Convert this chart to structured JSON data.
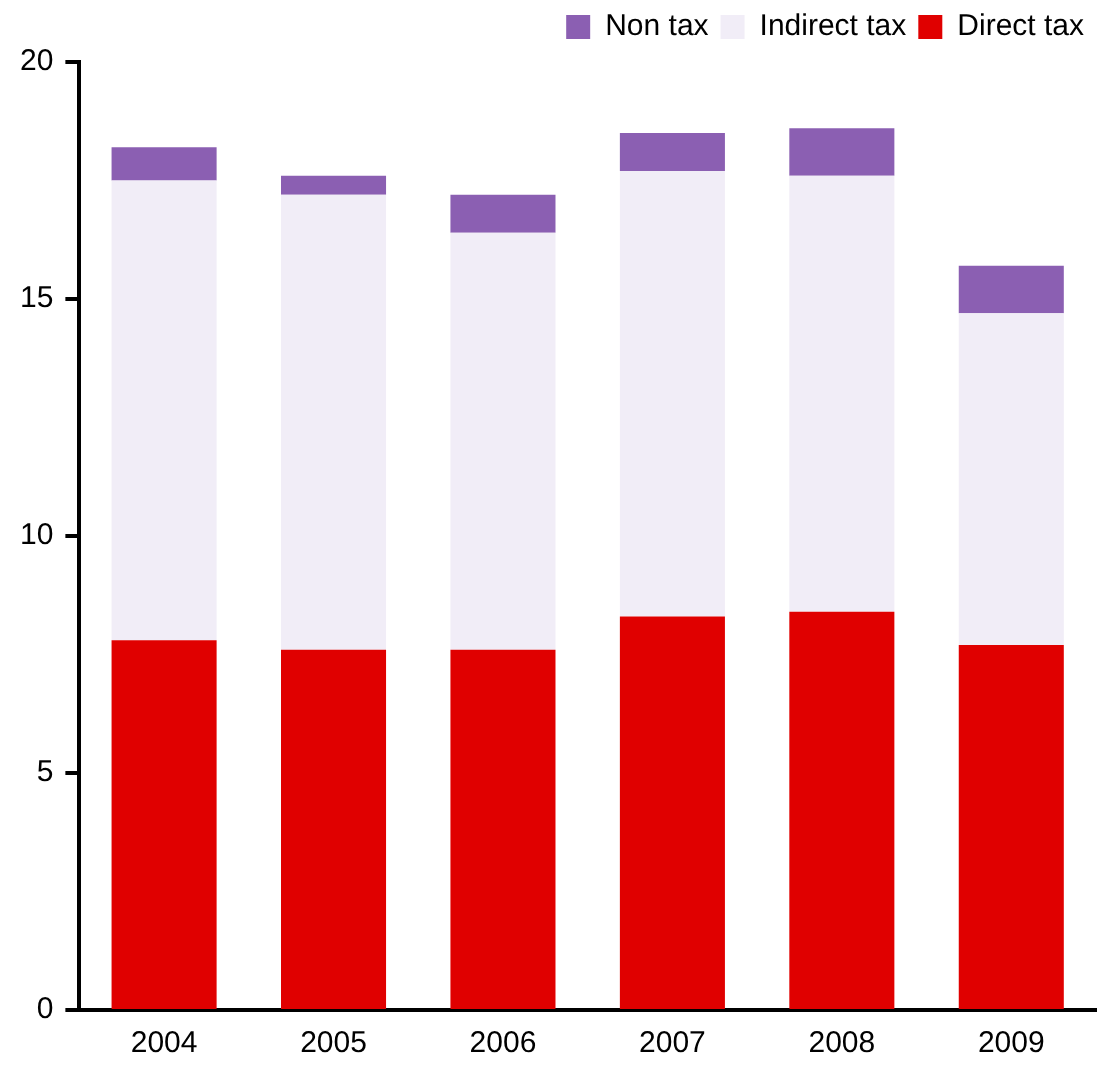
{
  "chart_data": {
    "type": "bar",
    "stacked": true,
    "categories": [
      "2004",
      "2005",
      "2006",
      "2007",
      "2008",
      "2009"
    ],
    "series": [
      {
        "name": "Direct tax",
        "color": "#e00000",
        "values": [
          7.8,
          7.6,
          7.6,
          8.3,
          8.4,
          7.7
        ]
      },
      {
        "name": "Indirect tax",
        "color": "#f1edf7",
        "values": [
          9.7,
          9.6,
          8.8,
          9.4,
          9.2,
          7.0
        ]
      },
      {
        "name": "Non tax",
        "color": "#8b5fb2",
        "values": [
          0.7,
          0.4,
          0.8,
          0.8,
          1.0,
          1.0
        ]
      }
    ],
    "ylim": [
      0,
      20
    ],
    "yticks": [
      0,
      5,
      10,
      15,
      20
    ],
    "grid": false,
    "legend": "top"
  }
}
